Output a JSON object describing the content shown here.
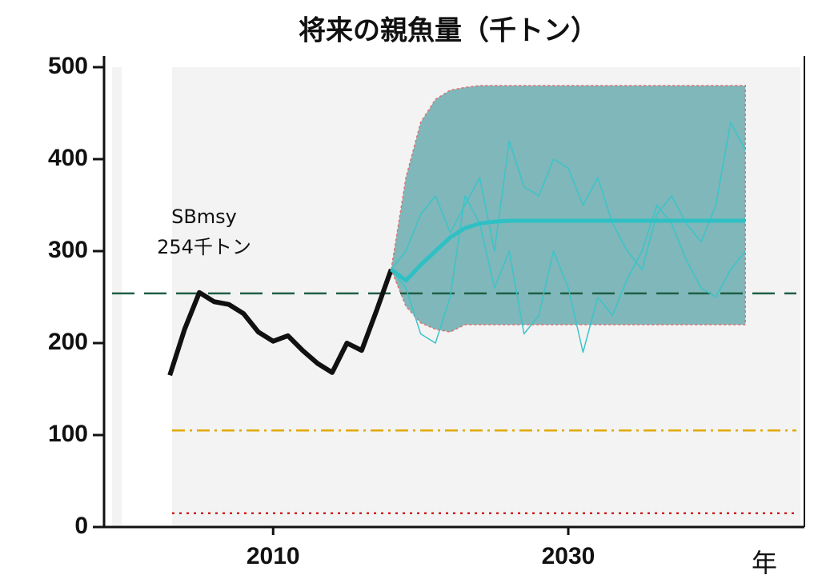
{
  "chart_data": {
    "type": "line",
    "title": "将来の親魚量（千トン）",
    "x_label": "年",
    "xlim": [
      1998,
      2046
    ],
    "xticks": [
      2010,
      2030
    ],
    "ylim": [
      0,
      500
    ],
    "yticks": [
      0,
      100,
      200,
      300,
      400,
      500
    ],
    "grid": false,
    "x": [
      2003,
      2004,
      2005,
      2006,
      2007,
      2008,
      2009,
      2010,
      2011,
      2012,
      2013,
      2014,
      2015,
      2016,
      2017,
      2018,
      2019,
      2020,
      2021,
      2022,
      2023,
      2024,
      2025,
      2026,
      2027,
      2028,
      2029,
      2030,
      2031,
      2032,
      2033,
      2034,
      2035,
      2036,
      2037,
      2038,
      2039,
      2040,
      2041,
      2042
    ],
    "band": {
      "color": "#6aabaf",
      "upper": [
        null,
        null,
        null,
        null,
        null,
        null,
        null,
        null,
        null,
        null,
        null,
        null,
        null,
        null,
        null,
        280,
        380,
        440,
        465,
        475,
        478,
        480,
        480,
        480,
        480,
        480,
        480,
        480,
        480,
        480,
        480,
        480,
        480,
        480,
        480,
        480,
        480,
        480,
        480,
        480
      ],
      "lower": [
        null,
        null,
        null,
        null,
        null,
        null,
        null,
        null,
        null,
        null,
        null,
        null,
        null,
        null,
        null,
        280,
        240,
        222,
        215,
        212,
        220,
        220,
        220,
        220,
        220,
        220,
        220,
        220,
        220,
        220,
        220,
        220,
        220,
        220,
        220,
        220,
        220,
        220,
        220,
        220
      ]
    },
    "series": [
      {
        "color": "#3cc4c8",
        "width": 1.5,
        "values": [
          null,
          null,
          null,
          null,
          null,
          null,
          null,
          null,
          null,
          null,
          null,
          null,
          null,
          null,
          null,
          280,
          300,
          340,
          360,
          320,
          350,
          380,
          300,
          420,
          370,
          360,
          400,
          390,
          350,
          380,
          330,
          300,
          280,
          340,
          360,
          330,
          310,
          350,
          440,
          410
        ]
      },
      {
        "color": "#3cc4c8",
        "width": 1.5,
        "values": [
          null,
          null,
          null,
          null,
          null,
          null,
          null,
          null,
          null,
          null,
          null,
          null,
          null,
          null,
          null,
          280,
          260,
          210,
          200,
          250,
          360,
          330,
          260,
          300,
          210,
          230,
          300,
          260,
          190,
          250,
          230,
          270,
          300,
          350,
          330,
          290,
          260,
          250,
          280,
          300
        ]
      },
      {
        "color": "#111111",
        "width": 6,
        "values": [
          165,
          215,
          255,
          245,
          242,
          232,
          212,
          202,
          208,
          192,
          178,
          168,
          200,
          192,
          235,
          280,
          null,
          null,
          null,
          null,
          null,
          null,
          null,
          null,
          null,
          null,
          null,
          null,
          null,
          null,
          null,
          null,
          null,
          null,
          null,
          null,
          null,
          null,
          null,
          null
        ]
      },
      {
        "color": "#2fc0c4",
        "width": 5,
        "values": [
          null,
          null,
          null,
          null,
          null,
          null,
          null,
          null,
          null,
          null,
          null,
          null,
          null,
          null,
          null,
          280,
          268,
          285,
          300,
          315,
          325,
          330,
          332,
          333,
          333,
          333,
          333,
          333,
          333,
          333,
          333,
          333,
          333,
          333,
          333,
          333,
          333,
          333,
          333,
          333
        ]
      }
    ],
    "hlines": [
      {
        "value": 254,
        "color": "#1f5f45",
        "dash": "28 12"
      },
      {
        "value": 105,
        "color": "#e0a800",
        "dash": "16 6 3 6"
      },
      {
        "value": 15,
        "color": "#d02020",
        "dash": "3 6"
      }
    ],
    "annotation": [
      "SBmsy",
      "254千トン"
    ]
  }
}
